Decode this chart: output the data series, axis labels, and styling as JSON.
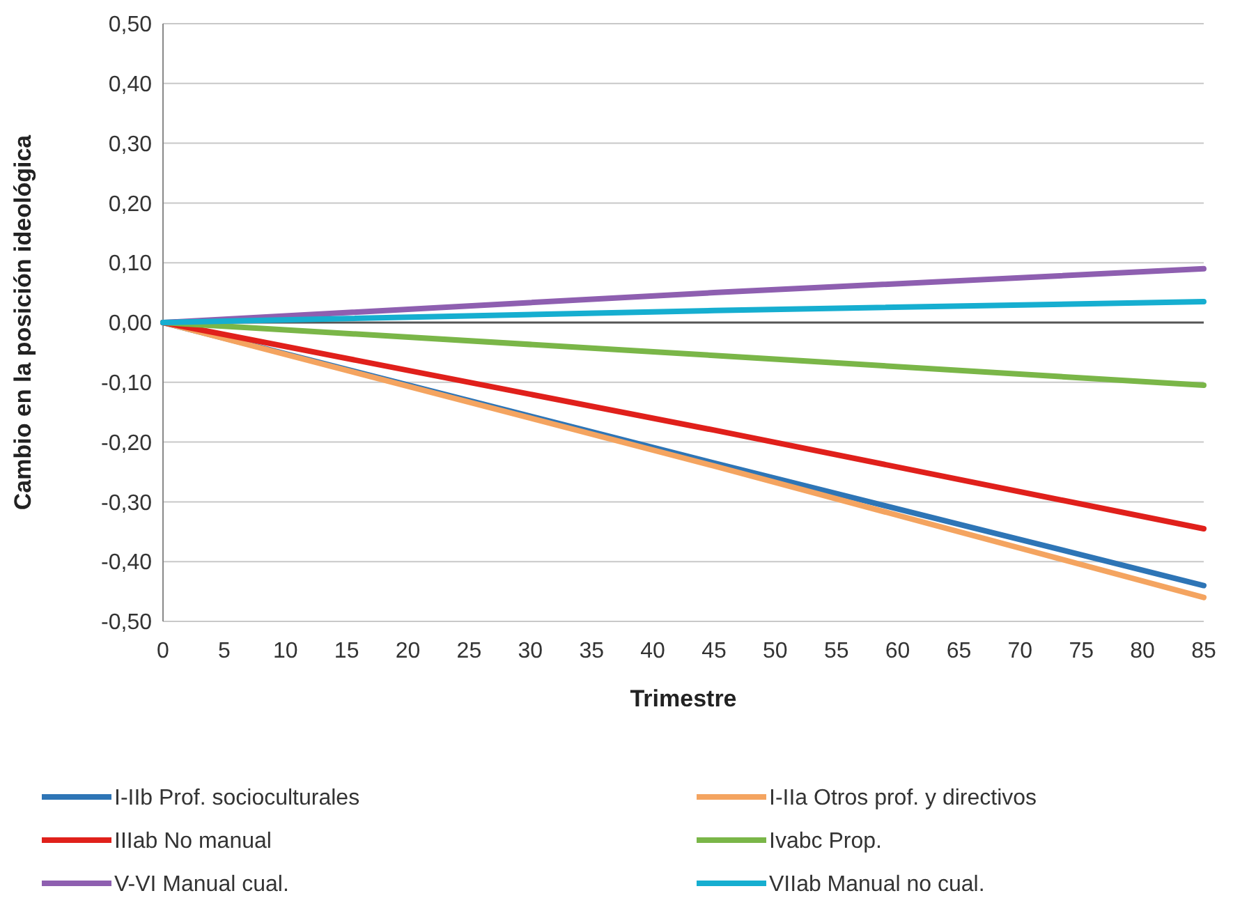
{
  "chart_data": {
    "type": "line",
    "xlabel": "Trimestre",
    "ylabel": "Cambio en la posición ideológica",
    "x": [
      0,
      45,
      85
    ],
    "xlim": [
      0,
      85
    ],
    "xticks": [
      0,
      5,
      10,
      15,
      20,
      25,
      30,
      35,
      40,
      45,
      50,
      55,
      60,
      65,
      70,
      75,
      80,
      85
    ],
    "ylim": [
      -0.5,
      0.5
    ],
    "yticks": [
      {
        "value": -0.5,
        "label": "-0,50"
      },
      {
        "value": -0.4,
        "label": "-0,40"
      },
      {
        "value": -0.3,
        "label": "-0,30"
      },
      {
        "value": -0.2,
        "label": "-0,20"
      },
      {
        "value": -0.1,
        "label": "-0,10"
      },
      {
        "value": 0,
        "label": "0,00"
      },
      {
        "value": 0.1,
        "label": "0,10"
      },
      {
        "value": 0.2,
        "label": "0,20"
      },
      {
        "value": 0.3,
        "label": "0,30"
      },
      {
        "value": 0.4,
        "label": "0,40"
      },
      {
        "value": 0.5,
        "label": "0,50"
      }
    ],
    "grid": "y",
    "legend": "bottom",
    "marker": "none",
    "line_style": "solid",
    "series": [
      {
        "name": "I-IIb Prof. socioculturales",
        "color": "#2e75b6",
        "values": [
          0,
          -0.235,
          -0.44
        ]
      },
      {
        "name": "I-IIa Otros prof. y directivos",
        "color": "#f4a460",
        "values": [
          0,
          -0.24,
          -0.46
        ]
      },
      {
        "name": "IIIab No manual",
        "color": "#e0201b",
        "values": [
          0,
          -0.18,
          -0.345
        ]
      },
      {
        "name": "Ivabc Prop.",
        "color": "#7ab648",
        "values": [
          0,
          -0.055,
          -0.105
        ]
      },
      {
        "name": "V-VI Manual cual.",
        "color": "#8e5fb0",
        "values": [
          0,
          0.05,
          0.09
        ]
      },
      {
        "name": "VIIab Manual no cual.",
        "color": "#16aed0",
        "values": [
          0,
          0.02,
          0.035
        ]
      }
    ]
  }
}
